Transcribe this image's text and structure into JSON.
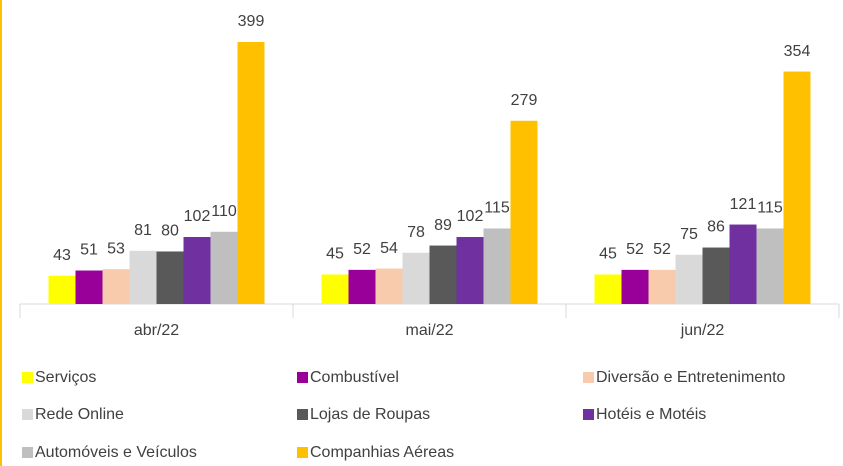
{
  "chart_data": {
    "type": "bar",
    "categories": [
      "abr/22",
      "mai/22",
      "jun/22"
    ],
    "series": [
      {
        "name": "Serviços",
        "color": "#ffff00",
        "values": [
          43,
          45,
          45
        ]
      },
      {
        "name": "Combustível",
        "color": "#990099",
        "values": [
          51,
          52,
          52
        ]
      },
      {
        "name": "Diversão e Entretenimento",
        "color": "#f8cbad",
        "values": [
          53,
          54,
          52
        ]
      },
      {
        "name": "Rede Online",
        "color": "#d9d9d9",
        "values": [
          81,
          78,
          75
        ]
      },
      {
        "name": "Lojas de Roupas",
        "color": "#595959",
        "values": [
          80,
          89,
          86
        ]
      },
      {
        "name": "Hotéis e Motéis",
        "color": "#7030a0",
        "values": [
          102,
          102,
          121
        ]
      },
      {
        "name": "Automóveis e Veículos",
        "color": "#bfbfbf",
        "values": [
          110,
          115,
          115
        ]
      },
      {
        "name": "Companhias Aéreas",
        "color": "#ffc000",
        "values": [
          399,
          279,
          354
        ]
      }
    ],
    "legend": "bottom"
  }
}
